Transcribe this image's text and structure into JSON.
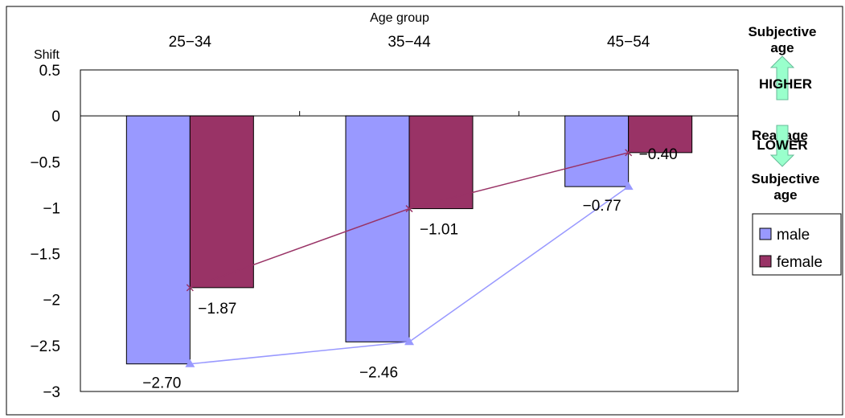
{
  "chart_data": {
    "type": "bar",
    "xlabel": "Age group",
    "ylabel": "Shift",
    "categories": [
      "25-34",
      "35-44",
      "45-54"
    ],
    "ylim": [
      -3,
      0.5
    ],
    "yticks": [
      "0.5",
      "0",
      "-0.5",
      "-1",
      "-1.5",
      "-2",
      "-2.5",
      "-3"
    ],
    "series": [
      {
        "name": "male",
        "values": [
          -2.7,
          -2.46,
          -0.77
        ],
        "labels": [
          "-2.70",
          "-2.46",
          "-0.77"
        ],
        "color": "#9999ff",
        "line_marker": "triangle"
      },
      {
        "name": "female",
        "values": [
          -1.87,
          -1.01,
          -0.4
        ],
        "labels": [
          "-1.87",
          "-1.01",
          "-0.40"
        ],
        "color": "#993366",
        "line_marker": "x"
      }
    ],
    "legend_position": "right",
    "grid": false
  },
  "side_note": {
    "top": "Subjective age",
    "higher": "HIGHER",
    "middle": "Real age",
    "lower": "LOWER",
    "bottom": "Subjective age",
    "arrow_color": "#99ffcc"
  }
}
